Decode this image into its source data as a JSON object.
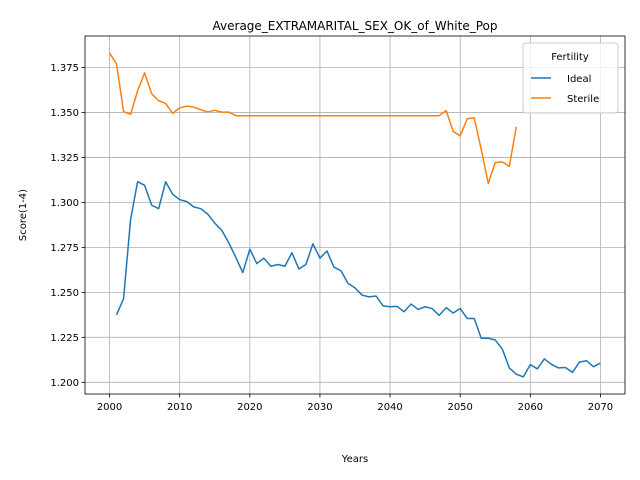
{
  "chart_data": {
    "type": "line",
    "title": "Average_EXTRAMARITAL_SEX_OK_of_White_Pop",
    "xlabel": "Years",
    "ylabel": "Score(1-4)",
    "xlim": [
      1996.5,
      2073.5
    ],
    "ylim": [
      1.1935,
      1.3925
    ],
    "xticks": [
      2000,
      2010,
      2020,
      2030,
      2040,
      2050,
      2060,
      2070
    ],
    "yticks": [
      1.2,
      1.225,
      1.25,
      1.275,
      1.3,
      1.325,
      1.35,
      1.375
    ],
    "xtick_labels": [
      "2000",
      "2010",
      "2020",
      "2030",
      "2040",
      "2050",
      "2060",
      "2070"
    ],
    "ytick_labels": [
      "1.200",
      "1.225",
      "1.250",
      "1.275",
      "1.300",
      "1.325",
      "1.350",
      "1.375"
    ],
    "grid": true,
    "legend": {
      "title": "Fertility",
      "placement": "top-right"
    },
    "series": [
      {
        "name": "Ideal",
        "color": "#1f77b4",
        "x": [
          2001,
          2002,
          2003,
          2004,
          2005,
          2006,
          2007,
          2008,
          2009,
          2010,
          2011,
          2012,
          2013,
          2014,
          2015,
          2016,
          2017,
          2018,
          2019,
          2020,
          2021,
          2022,
          2023,
          2024,
          2025,
          2026,
          2027,
          2028,
          2029,
          2030,
          2031,
          2032,
          2033,
          2034,
          2035,
          2036,
          2037,
          2038,
          2039,
          2040,
          2041,
          2042,
          2043,
          2044,
          2045,
          2046,
          2047,
          2048,
          2049,
          2050,
          2051,
          2052,
          2053,
          2054,
          2055,
          2056,
          2057,
          2058,
          2059,
          2060,
          2061,
          2062,
          2063,
          2064,
          2065,
          2066,
          2067,
          2068,
          2069,
          2070
        ],
        "values": [
          1.2375,
          1.2465,
          1.2905,
          1.3115,
          1.3095,
          1.2985,
          1.2965,
          1.3115,
          1.3045,
          1.3015,
          1.3005,
          1.2975,
          1.2965,
          1.2935,
          1.2885,
          1.2845,
          1.2775,
          1.2695,
          1.261,
          1.274,
          1.266,
          1.269,
          1.2645,
          1.2655,
          1.2645,
          1.272,
          1.263,
          1.2655,
          1.277,
          1.269,
          1.273,
          1.264,
          1.262,
          1.255,
          1.2525,
          1.2485,
          1.2475,
          1.248,
          1.2425,
          1.242,
          1.2422,
          1.2392,
          1.2435,
          1.2405,
          1.242,
          1.241,
          1.2372,
          1.2415,
          1.2385,
          1.241,
          1.2355,
          1.2355,
          1.2245,
          1.2245,
          1.2235,
          1.2185,
          1.208,
          1.2045,
          1.203,
          1.2098,
          1.2075,
          1.213,
          1.21,
          1.208,
          1.2082,
          1.2055,
          1.2112,
          1.212,
          1.2087,
          1.2107
        ]
      },
      {
        "name": "Sterile",
        "color": "#ff7f0e",
        "x": [
          2000,
          2001,
          2002,
          2003,
          2004,
          2005,
          2006,
          2007,
          2008,
          2009,
          2010,
          2011,
          2012,
          2013,
          2014,
          2015,
          2016,
          2017,
          2018,
          2019,
          2020,
          2021,
          2022,
          2023,
          2024,
          2025,
          2026,
          2027,
          2028,
          2029,
          2030,
          2031,
          2032,
          2033,
          2034,
          2035,
          2036,
          2037,
          2038,
          2039,
          2040,
          2041,
          2042,
          2043,
          2044,
          2045,
          2046,
          2047,
          2048,
          2049,
          2050,
          2051,
          2052,
          2053,
          2054,
          2055,
          2056,
          2057,
          2058
        ],
        "values": [
          1.383,
          1.377,
          1.3505,
          1.349,
          1.362,
          1.372,
          1.3605,
          1.3565,
          1.355,
          1.3495,
          1.3525,
          1.3535,
          1.353,
          1.3515,
          1.3503,
          1.3512,
          1.3502,
          1.3502,
          1.3482,
          1.3482,
          1.3482,
          1.3482,
          1.3482,
          1.3482,
          1.3482,
          1.3482,
          1.3482,
          1.3482,
          1.3482,
          1.3482,
          1.3482,
          1.3482,
          1.3482,
          1.3482,
          1.3482,
          1.3482,
          1.3482,
          1.3482,
          1.3482,
          1.3482,
          1.3482,
          1.3482,
          1.3482,
          1.3482,
          1.3482,
          1.3482,
          1.3482,
          1.3482,
          1.351,
          1.3395,
          1.337,
          1.3465,
          1.347,
          1.3295,
          1.3105,
          1.3222,
          1.3225,
          1.32,
          1.342
        ]
      }
    ]
  }
}
